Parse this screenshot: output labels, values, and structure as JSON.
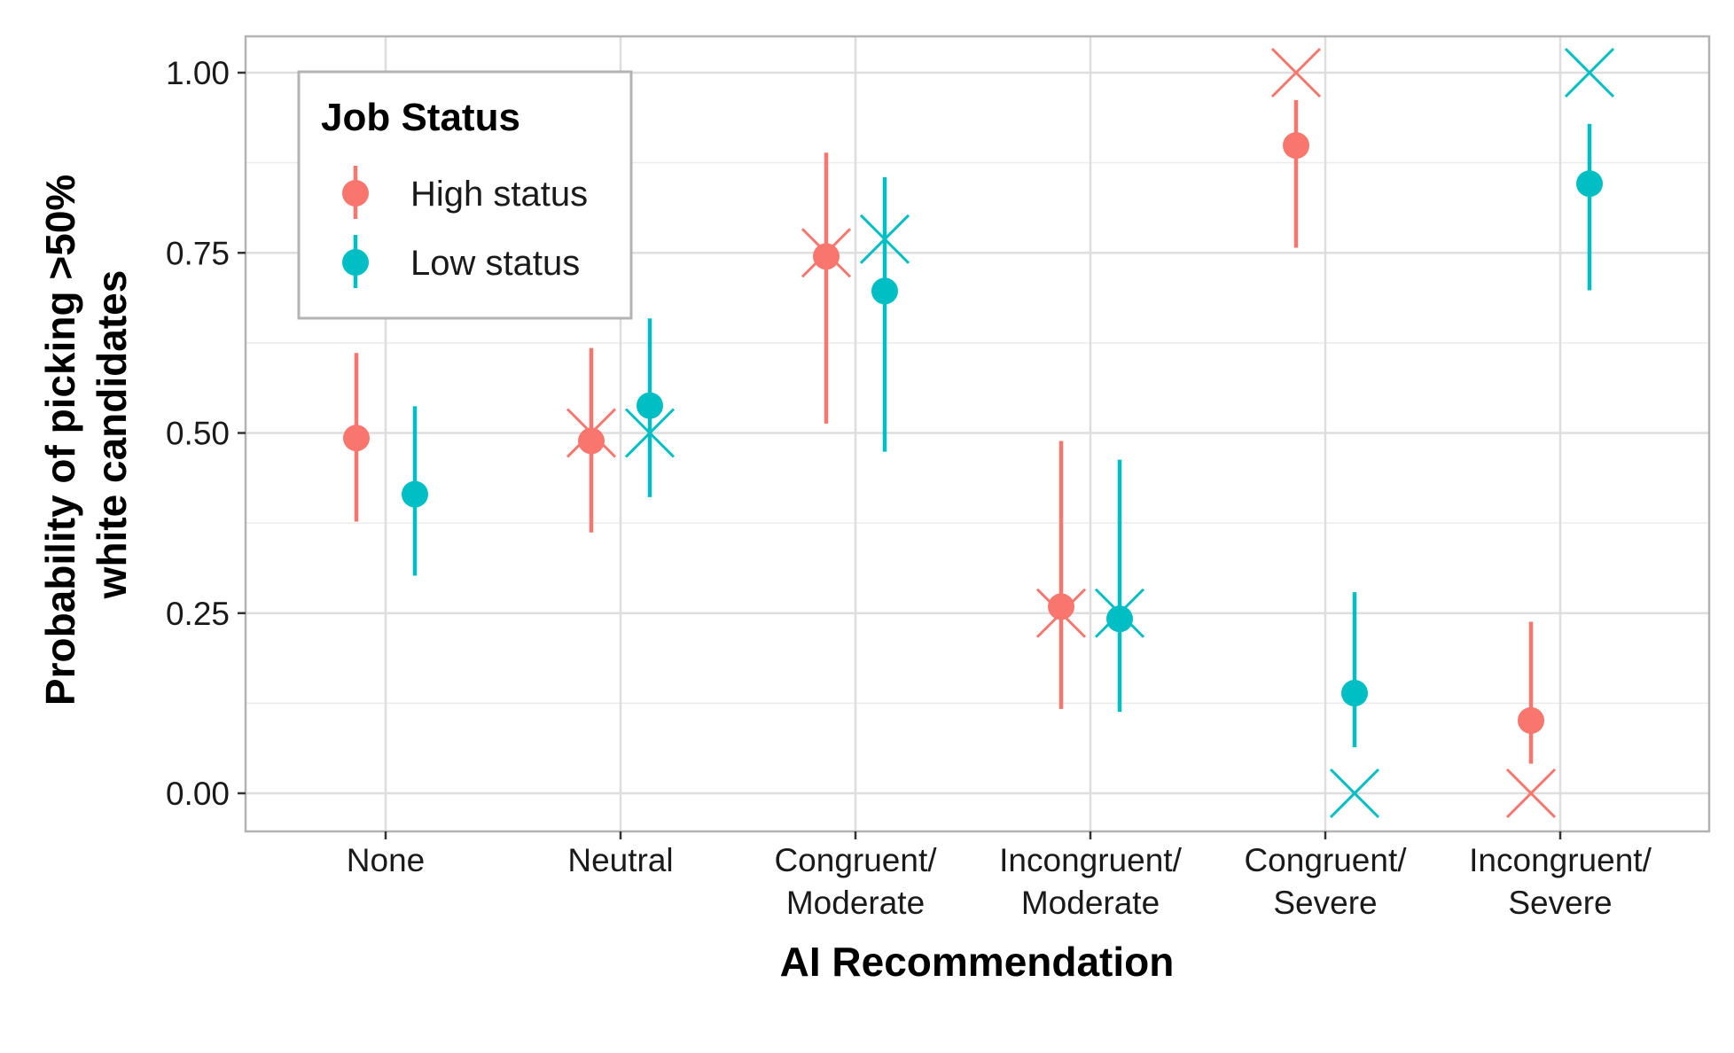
{
  "chart_data": {
    "type": "scatter",
    "xlabel": "AI Recommendation",
    "ylabel_lines": [
      "Probability of picking >50%",
      "white candidates"
    ],
    "categories": [
      [
        "None"
      ],
      [
        "Neutral"
      ],
      [
        "Congruent/",
        "Moderate"
      ],
      [
        "Incongruent/",
        "Moderate"
      ],
      [
        "Congruent/",
        "Severe"
      ],
      [
        "Incongruent/",
        "Severe"
      ]
    ],
    "ylim": [
      -0.05,
      1.05
    ],
    "yticks": [
      "0.00",
      "0.25",
      "0.50",
      "0.75",
      "1.00"
    ],
    "grid": true,
    "legend": {
      "title": "Job Status",
      "position": "top-left"
    },
    "series": [
      {
        "name": "High status",
        "color": "#F8766D",
        "point_estimate": [
          0.493,
          0.489,
          0.745,
          0.259,
          0.899,
          0.101
        ],
        "ci_low": [
          0.377,
          0.362,
          0.513,
          0.117,
          0.757,
          0.041
        ],
        "ci_high": [
          0.611,
          0.618,
          0.889,
          0.489,
          0.962,
          0.238
        ],
        "x_marker": [
          null,
          0.5,
          0.75,
          0.25,
          1.0,
          0.0
        ]
      },
      {
        "name": "Low status",
        "color": "#00BFC4",
        "point_estimate": [
          0.415,
          0.538,
          0.697,
          0.242,
          0.139,
          0.846
        ],
        "ci_low": [
          0.302,
          0.411,
          0.474,
          0.113,
          0.064,
          0.698
        ],
        "ci_high": [
          0.537,
          0.659,
          0.855,
          0.463,
          0.279,
          0.929
        ],
        "x_marker": [
          null,
          0.5,
          0.769,
          0.25,
          0.0,
          1.0
        ]
      }
    ]
  }
}
